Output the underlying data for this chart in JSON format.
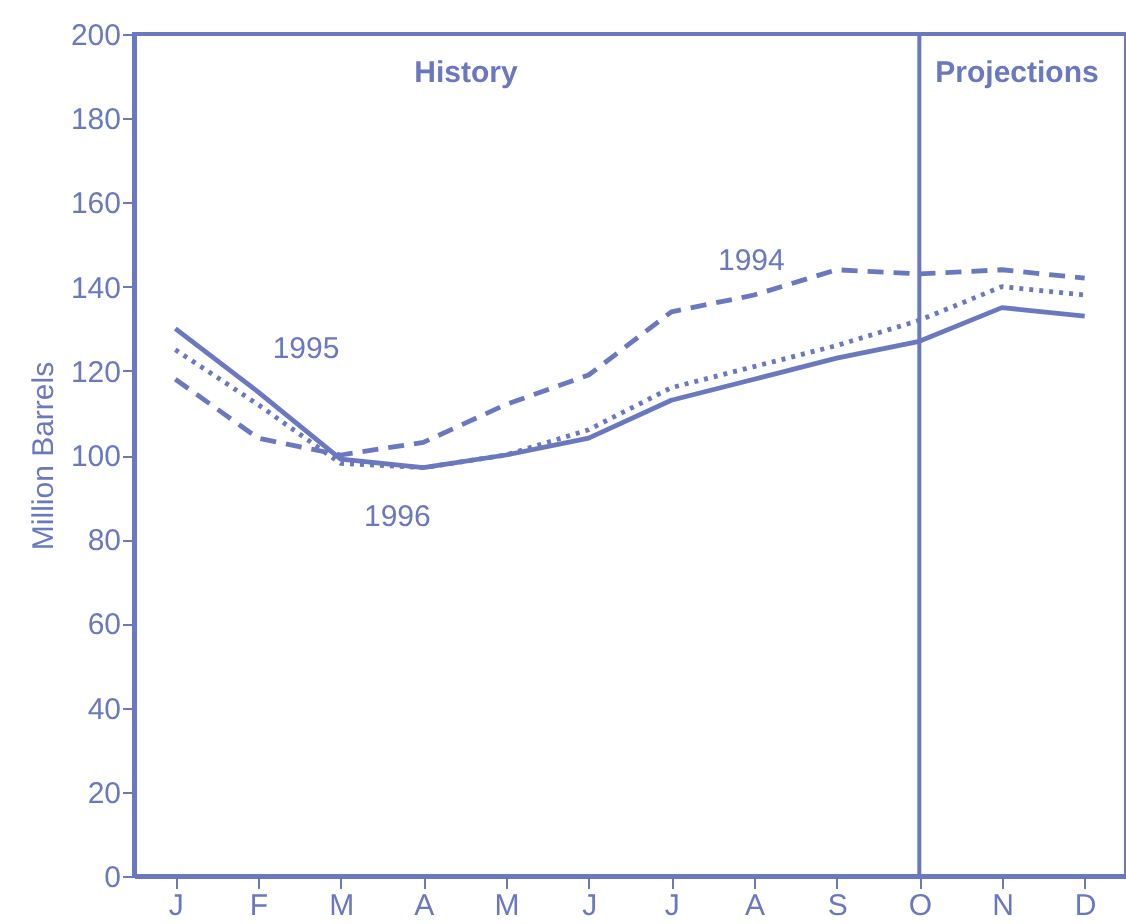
{
  "chart_data": {
    "type": "line",
    "ylabel": "Million Barrels",
    "categories": [
      "J",
      "F",
      "M",
      "A",
      "M",
      "J",
      "J",
      "A",
      "S",
      "O",
      "N",
      "D"
    ],
    "ylim": [
      0,
      200
    ],
    "yticks": [
      0,
      20,
      40,
      60,
      80,
      100,
      120,
      140,
      160,
      180,
      200
    ],
    "series": [
      {
        "name": "1995",
        "color": "#6a78c0",
        "line_style": "solid",
        "values": [
          130,
          115,
          99,
          97,
          100,
          104,
          113,
          118,
          123,
          127,
          135,
          133
        ]
      },
      {
        "name": "1996",
        "color": "#6a78c0",
        "line_style": "dotted",
        "values": [
          125,
          112,
          98,
          97,
          100,
          106,
          116,
          121,
          126,
          132,
          140,
          138
        ]
      },
      {
        "name": "1994",
        "color": "#6a78c0",
        "line_style": "dashed",
        "values": [
          118,
          104,
          100,
          103,
          112,
          119,
          134,
          138,
          144,
          143,
          144,
          142
        ]
      }
    ],
    "ref_lines": [
      {
        "axis": "x",
        "value": "O"
      }
    ],
    "annotations": [
      "History",
      "Projections"
    ],
    "grid": false,
    "marker": "none"
  }
}
